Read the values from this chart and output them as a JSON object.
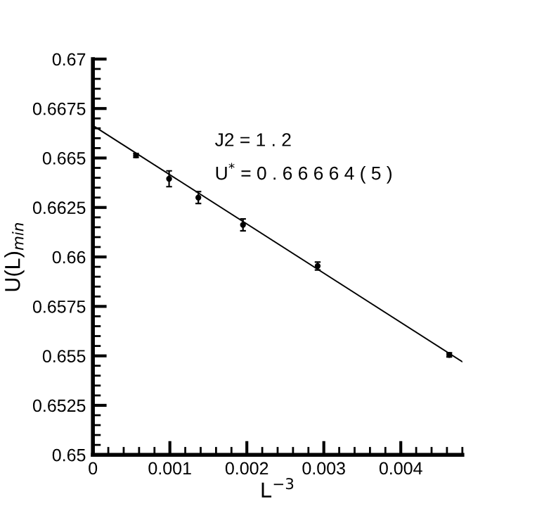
{
  "chart_data": {
    "type": "scatter",
    "xlabel": "L$^{−3}$",
    "ylabel": "U(L)$_{min}$",
    "annotations": [
      "J2 = 1 . 2",
      "U$^{*}$ = 0 . 6 6 6 6 4 ( 5 )"
    ],
    "x": [
      0.00056,
      0.00099,
      0.00137,
      0.00195,
      0.00292,
      0.00463
    ],
    "series": [
      {
        "color": "#000000",
        "marker": "circle",
        "values": [
          0.66513,
          0.66395,
          0.663,
          0.66162,
          0.65954,
          0.65505
        ],
        "errors": [
          0.0001,
          0.0004,
          0.0003,
          0.0003,
          0.0002,
          0.0001
        ]
      },
      {
        "type": "line",
        "color": "#000000",
        "x": [
          0,
          0.0048
        ],
        "values": [
          0.66664,
          0.6547
        ]
      }
    ],
    "xlim": [
      0,
      0.0048
    ],
    "xticks": [
      0,
      0.001,
      0.002,
      0.003,
      0.004
    ],
    "ylim": [
      0.65,
      0.67
    ],
    "yticks": [
      0.65,
      0.6525,
      0.655,
      0.6575,
      0.66,
      0.6625,
      0.665,
      0.6675,
      0.67
    ],
    "grid": false,
    "legend": false
  }
}
